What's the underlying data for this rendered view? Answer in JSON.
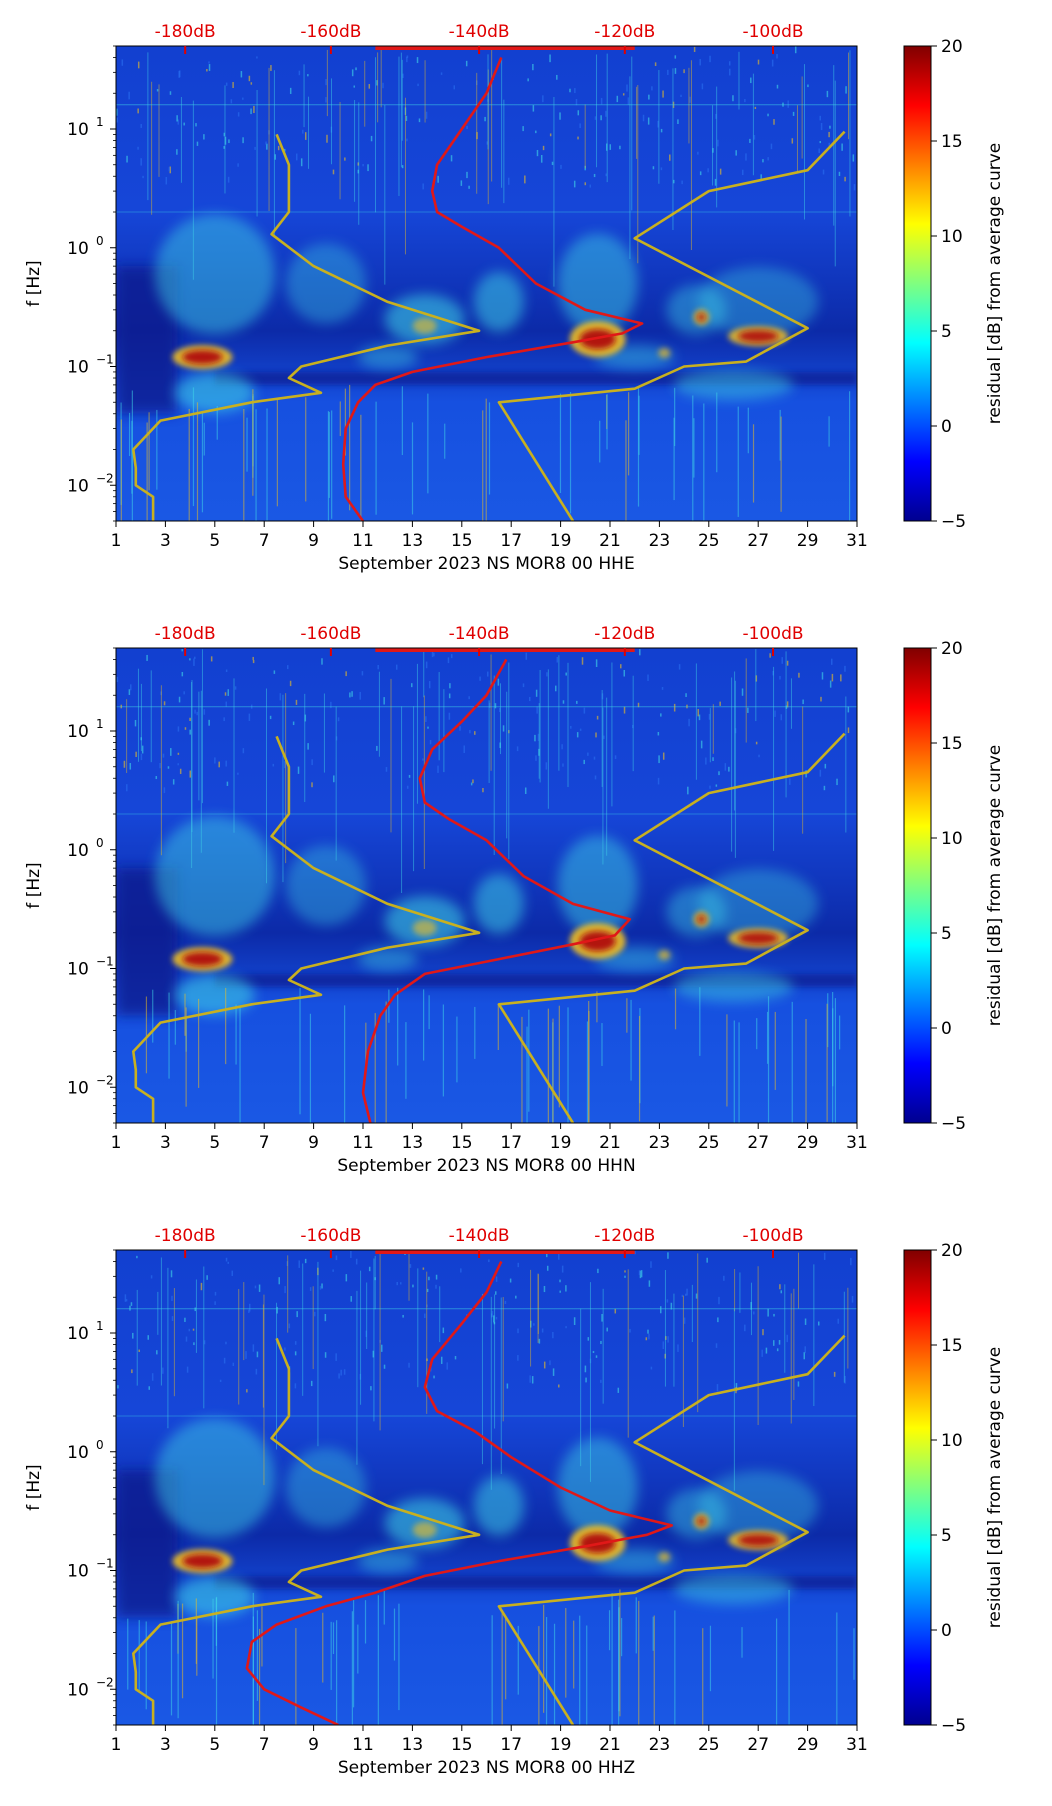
{
  "colorbar": {
    "label": "residual [dB] from average curve",
    "ticks": [
      "20",
      "15",
      "10",
      "5",
      "0",
      "−5"
    ],
    "range": [
      -5,
      20
    ]
  },
  "db_scale": {
    "ticks": [
      "-180dB",
      "-160dB",
      "-140dB",
      "-120dB",
      "-100dB"
    ],
    "color": "#e00000"
  },
  "x_axis": {
    "ticks": [
      "1",
      "3",
      "5",
      "7",
      "9",
      "11",
      "13",
      "15",
      "17",
      "19",
      "21",
      "23",
      "25",
      "27",
      "29",
      "31"
    ]
  },
  "y_axis": {
    "label": "f [Hz]",
    "ticks": [
      {
        "base": "10",
        "exp": "1"
      },
      {
        "base": "10",
        "exp": "0"
      },
      {
        "base": "10",
        "exp": "−1"
      },
      {
        "base": "10",
        "exp": "−2"
      }
    ]
  },
  "colors": {
    "background": "#1a44d8",
    "hot": "#b01010",
    "warm": "#f0c020",
    "cool": "#40d8e8",
    "red_curve": "#e01818",
    "gold_curve": "#c8b020"
  },
  "chart_data": [
    {
      "type": "heatmap",
      "xlabel": "September 2023 NS MOR8 00 HHE",
      "ylabel": "f [Hz]",
      "xlim": [
        1,
        31
      ],
      "ylim": [
        0.005,
        50
      ],
      "y_scale": "log",
      "colorbar_range": [
        -5,
        20
      ],
      "series": [
        {
          "name": "median PSD (red)",
          "points": [
            [
              11,
              0.005
            ],
            [
              10.3,
              0.008
            ],
            [
              10.2,
              0.015
            ],
            [
              10.3,
              0.03
            ],
            [
              10.8,
              0.05
            ],
            [
              11.5,
              0.07
            ],
            [
              13,
              0.09
            ],
            [
              16,
              0.12
            ],
            [
              19.5,
              0.16
            ],
            [
              21.5,
              0.19
            ],
            [
              22.3,
              0.23
            ],
            [
              20,
              0.3
            ],
            [
              18,
              0.5
            ],
            [
              16.5,
              1.0
            ],
            [
              15,
              1.5
            ],
            [
              14,
              2.0
            ],
            [
              13.8,
              3.0
            ],
            [
              14.0,
              5.0
            ],
            [
              15.0,
              10
            ],
            [
              16.0,
              20
            ],
            [
              16.6,
              40
            ]
          ]
        },
        {
          "name": "low noise model (gold)",
          "points": [
            [
              2.5,
              0.005
            ],
            [
              2.5,
              0.008
            ],
            [
              1.8,
              0.01
            ],
            [
              1.8,
              0.014
            ],
            [
              1.7,
              0.02
            ],
            [
              2.8,
              0.035
            ],
            [
              6.5,
              0.05
            ],
            [
              9.3,
              0.06
            ],
            [
              8.0,
              0.08
            ],
            [
              8.5,
              0.1
            ],
            [
              12,
              0.15
            ],
            [
              15.7,
              0.2
            ],
            [
              12,
              0.35
            ],
            [
              9,
              0.7
            ],
            [
              7.3,
              1.3
            ],
            [
              8.0,
              2.0
            ],
            [
              8.0,
              5.0
            ],
            [
              7.5,
              9.0
            ]
          ]
        },
        {
          "name": "high noise model (gold)",
          "points": [
            [
              19.5,
              0.005
            ],
            [
              16.5,
              0.05
            ],
            [
              22,
              0.065
            ],
            [
              24,
              0.1
            ],
            [
              26.5,
              0.11
            ],
            [
              29,
              0.21
            ],
            [
              22,
              1.2
            ],
            [
              25,
              3.0
            ],
            [
              29,
              4.5
            ],
            [
              30.5,
              9.5
            ]
          ]
        }
      ]
    },
    {
      "type": "heatmap",
      "xlabel": "September 2023 NS MOR8 00 HHN",
      "ylabel": "f [Hz]",
      "xlim": [
        1,
        31
      ],
      "ylim": [
        0.005,
        50
      ],
      "y_scale": "log",
      "colorbar_range": [
        -5,
        20
      ],
      "series": [
        {
          "name": "median PSD (red)",
          "points": [
            [
              11.3,
              0.005
            ],
            [
              11.0,
              0.009
            ],
            [
              11.2,
              0.02
            ],
            [
              11.7,
              0.04
            ],
            [
              12.3,
              0.06
            ],
            [
              13.5,
              0.09
            ],
            [
              16.5,
              0.12
            ],
            [
              19.5,
              0.16
            ],
            [
              21.2,
              0.19
            ],
            [
              21.8,
              0.26
            ],
            [
              19.5,
              0.35
            ],
            [
              17.5,
              0.6
            ],
            [
              16.0,
              1.2
            ],
            [
              14.5,
              1.8
            ],
            [
              13.5,
              2.5
            ],
            [
              13.3,
              4.0
            ],
            [
              13.8,
              7.0
            ],
            [
              15,
              12
            ],
            [
              16.0,
              20
            ],
            [
              16.8,
              40
            ]
          ]
        },
        {
          "name": "low noise model (gold)",
          "points": [
            [
              2.5,
              0.005
            ],
            [
              2.5,
              0.008
            ],
            [
              1.8,
              0.01
            ],
            [
              1.8,
              0.014
            ],
            [
              1.7,
              0.02
            ],
            [
              2.8,
              0.035
            ],
            [
              6.5,
              0.05
            ],
            [
              9.3,
              0.06
            ],
            [
              8.0,
              0.08
            ],
            [
              8.5,
              0.1
            ],
            [
              12,
              0.15
            ],
            [
              15.7,
              0.2
            ],
            [
              12,
              0.35
            ],
            [
              9,
              0.7
            ],
            [
              7.3,
              1.3
            ],
            [
              8.0,
              2.0
            ],
            [
              8.0,
              5.0
            ],
            [
              7.5,
              9.0
            ]
          ]
        },
        {
          "name": "high noise model (gold)",
          "points": [
            [
              19.5,
              0.005
            ],
            [
              16.5,
              0.05
            ],
            [
              22,
              0.065
            ],
            [
              24,
              0.1
            ],
            [
              26.5,
              0.11
            ],
            [
              29,
              0.21
            ],
            [
              22,
              1.2
            ],
            [
              25,
              3.0
            ],
            [
              29,
              4.5
            ],
            [
              30.5,
              9.5
            ]
          ]
        }
      ]
    },
    {
      "type": "heatmap",
      "xlabel": "September 2023 NS MOR8 00 HHZ",
      "ylabel": "f [Hz]",
      "xlim": [
        1,
        31
      ],
      "ylim": [
        0.005,
        50
      ],
      "y_scale": "log",
      "colorbar_range": [
        -5,
        20
      ],
      "series": [
        {
          "name": "median PSD (red)",
          "points": [
            [
              10.0,
              0.005
            ],
            [
              8.5,
              0.007
            ],
            [
              7.0,
              0.01
            ],
            [
              6.3,
              0.015
            ],
            [
              6.5,
              0.025
            ],
            [
              7.5,
              0.035
            ],
            [
              9.5,
              0.05
            ],
            [
              11.5,
              0.065
            ],
            [
              13.5,
              0.09
            ],
            [
              16.5,
              0.12
            ],
            [
              20,
              0.16
            ],
            [
              22.5,
              0.2
            ],
            [
              23.5,
              0.24
            ],
            [
              21,
              0.32
            ],
            [
              19,
              0.5
            ],
            [
              17,
              0.9
            ],
            [
              15.5,
              1.5
            ],
            [
              14,
              2.2
            ],
            [
              13.5,
              3.5
            ],
            [
              13.8,
              6.0
            ],
            [
              15,
              12
            ],
            [
              16,
              22
            ],
            [
              16.6,
              40
            ]
          ]
        },
        {
          "name": "low noise model (gold)",
          "points": [
            [
              2.5,
              0.005
            ],
            [
              2.5,
              0.008
            ],
            [
              1.8,
              0.01
            ],
            [
              1.8,
              0.014
            ],
            [
              1.7,
              0.02
            ],
            [
              2.8,
              0.035
            ],
            [
              6.5,
              0.05
            ],
            [
              9.3,
              0.06
            ],
            [
              8.0,
              0.08
            ],
            [
              8.5,
              0.1
            ],
            [
              12,
              0.15
            ],
            [
              15.7,
              0.2
            ],
            [
              12,
              0.35
            ],
            [
              9,
              0.7
            ],
            [
              7.3,
              1.3
            ],
            [
              8.0,
              2.0
            ],
            [
              8.0,
              5.0
            ],
            [
              7.5,
              9.0
            ]
          ]
        },
        {
          "name": "high noise model (gold)",
          "points": [
            [
              19.5,
              0.005
            ],
            [
              16.5,
              0.05
            ],
            [
              22,
              0.065
            ],
            [
              24,
              0.1
            ],
            [
              26.5,
              0.11
            ],
            [
              29,
              0.21
            ],
            [
              22,
              1.2
            ],
            [
              25,
              3.0
            ],
            [
              29,
              4.5
            ],
            [
              30.5,
              9.5
            ]
          ]
        }
      ]
    }
  ]
}
